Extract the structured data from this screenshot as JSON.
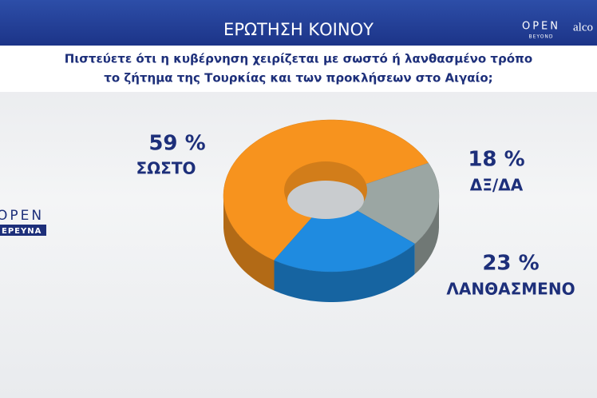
{
  "header": {
    "title": "ΕΡΩΤΗΣΗ ΚΟΙΝΟΥ",
    "logo_top": [
      "OPEN",
      "BEYOND"
    ],
    "logo_partner": "alco",
    "logo_side": [
      "OPEN",
      "ΕΡΕΥΝΑ"
    ]
  },
  "question": [
    "Πιστεύετε ότι η κυβέρνηση χειρίζεται με σωστό ή λανθασμένο τρόπο",
    "το ζήτημα της Τουρκίας και των  προκλήσεων στο Αιγαίο;"
  ],
  "chart_data": {
    "type": "pie",
    "donut": true,
    "categories": [
      "ΣΩΣΤΟ",
      "ΔΞ/ΔΑ",
      "ΛΑΝΘΑΣΜΕΝΟ"
    ],
    "values": [
      59,
      18,
      23
    ],
    "value_labels": [
      "59 %",
      "18 %",
      "23 %"
    ],
    "colors": [
      "#f7931e",
      "#9ba6a3",
      "#1f8be0"
    ]
  }
}
